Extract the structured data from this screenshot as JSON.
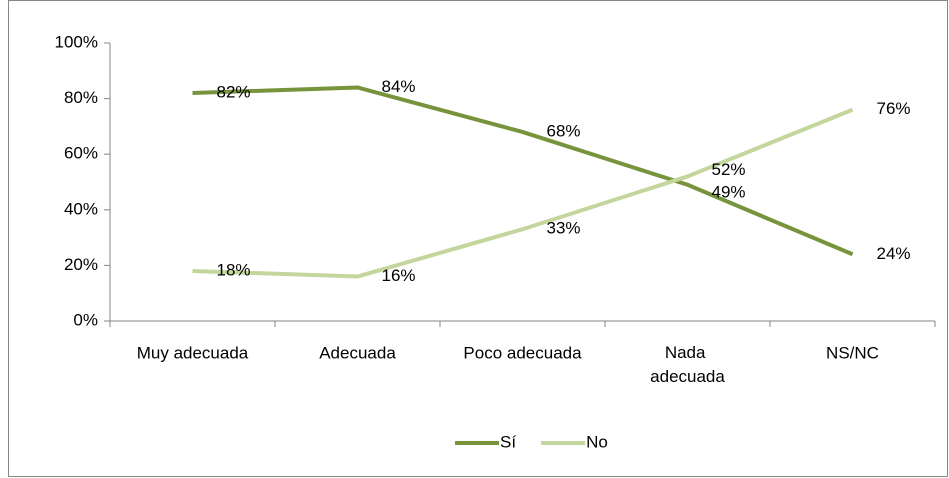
{
  "chart_data": {
    "type": "line",
    "categories": [
      "Muy adecuada",
      "Adecuada",
      "Poco adecuada",
      "Nada adecuada",
      "NS/NC"
    ],
    "series": [
      {
        "name": "Sí",
        "color": "#77933c",
        "values": [
          82,
          84,
          68,
          49,
          24
        ],
        "value_labels": [
          "82%",
          "84%",
          "68%",
          "49%",
          "24%"
        ]
      },
      {
        "name": "No",
        "color": "#c3d69b",
        "values": [
          18,
          16,
          33,
          52,
          76
        ],
        "value_labels": [
          "18%",
          "16%",
          "33%",
          "52%",
          "76%"
        ]
      }
    ],
    "ylim": [
      0,
      100
    ],
    "yticks": [
      {
        "value": 0,
        "label": "0%"
      },
      {
        "value": 20,
        "label": "20%"
      },
      {
        "value": 40,
        "label": "40%"
      },
      {
        "value": 60,
        "label": "60%"
      },
      {
        "value": 80,
        "label": "80%"
      },
      {
        "value": 100,
        "label": "100%"
      }
    ],
    "grid": false,
    "legend": "bottom"
  }
}
